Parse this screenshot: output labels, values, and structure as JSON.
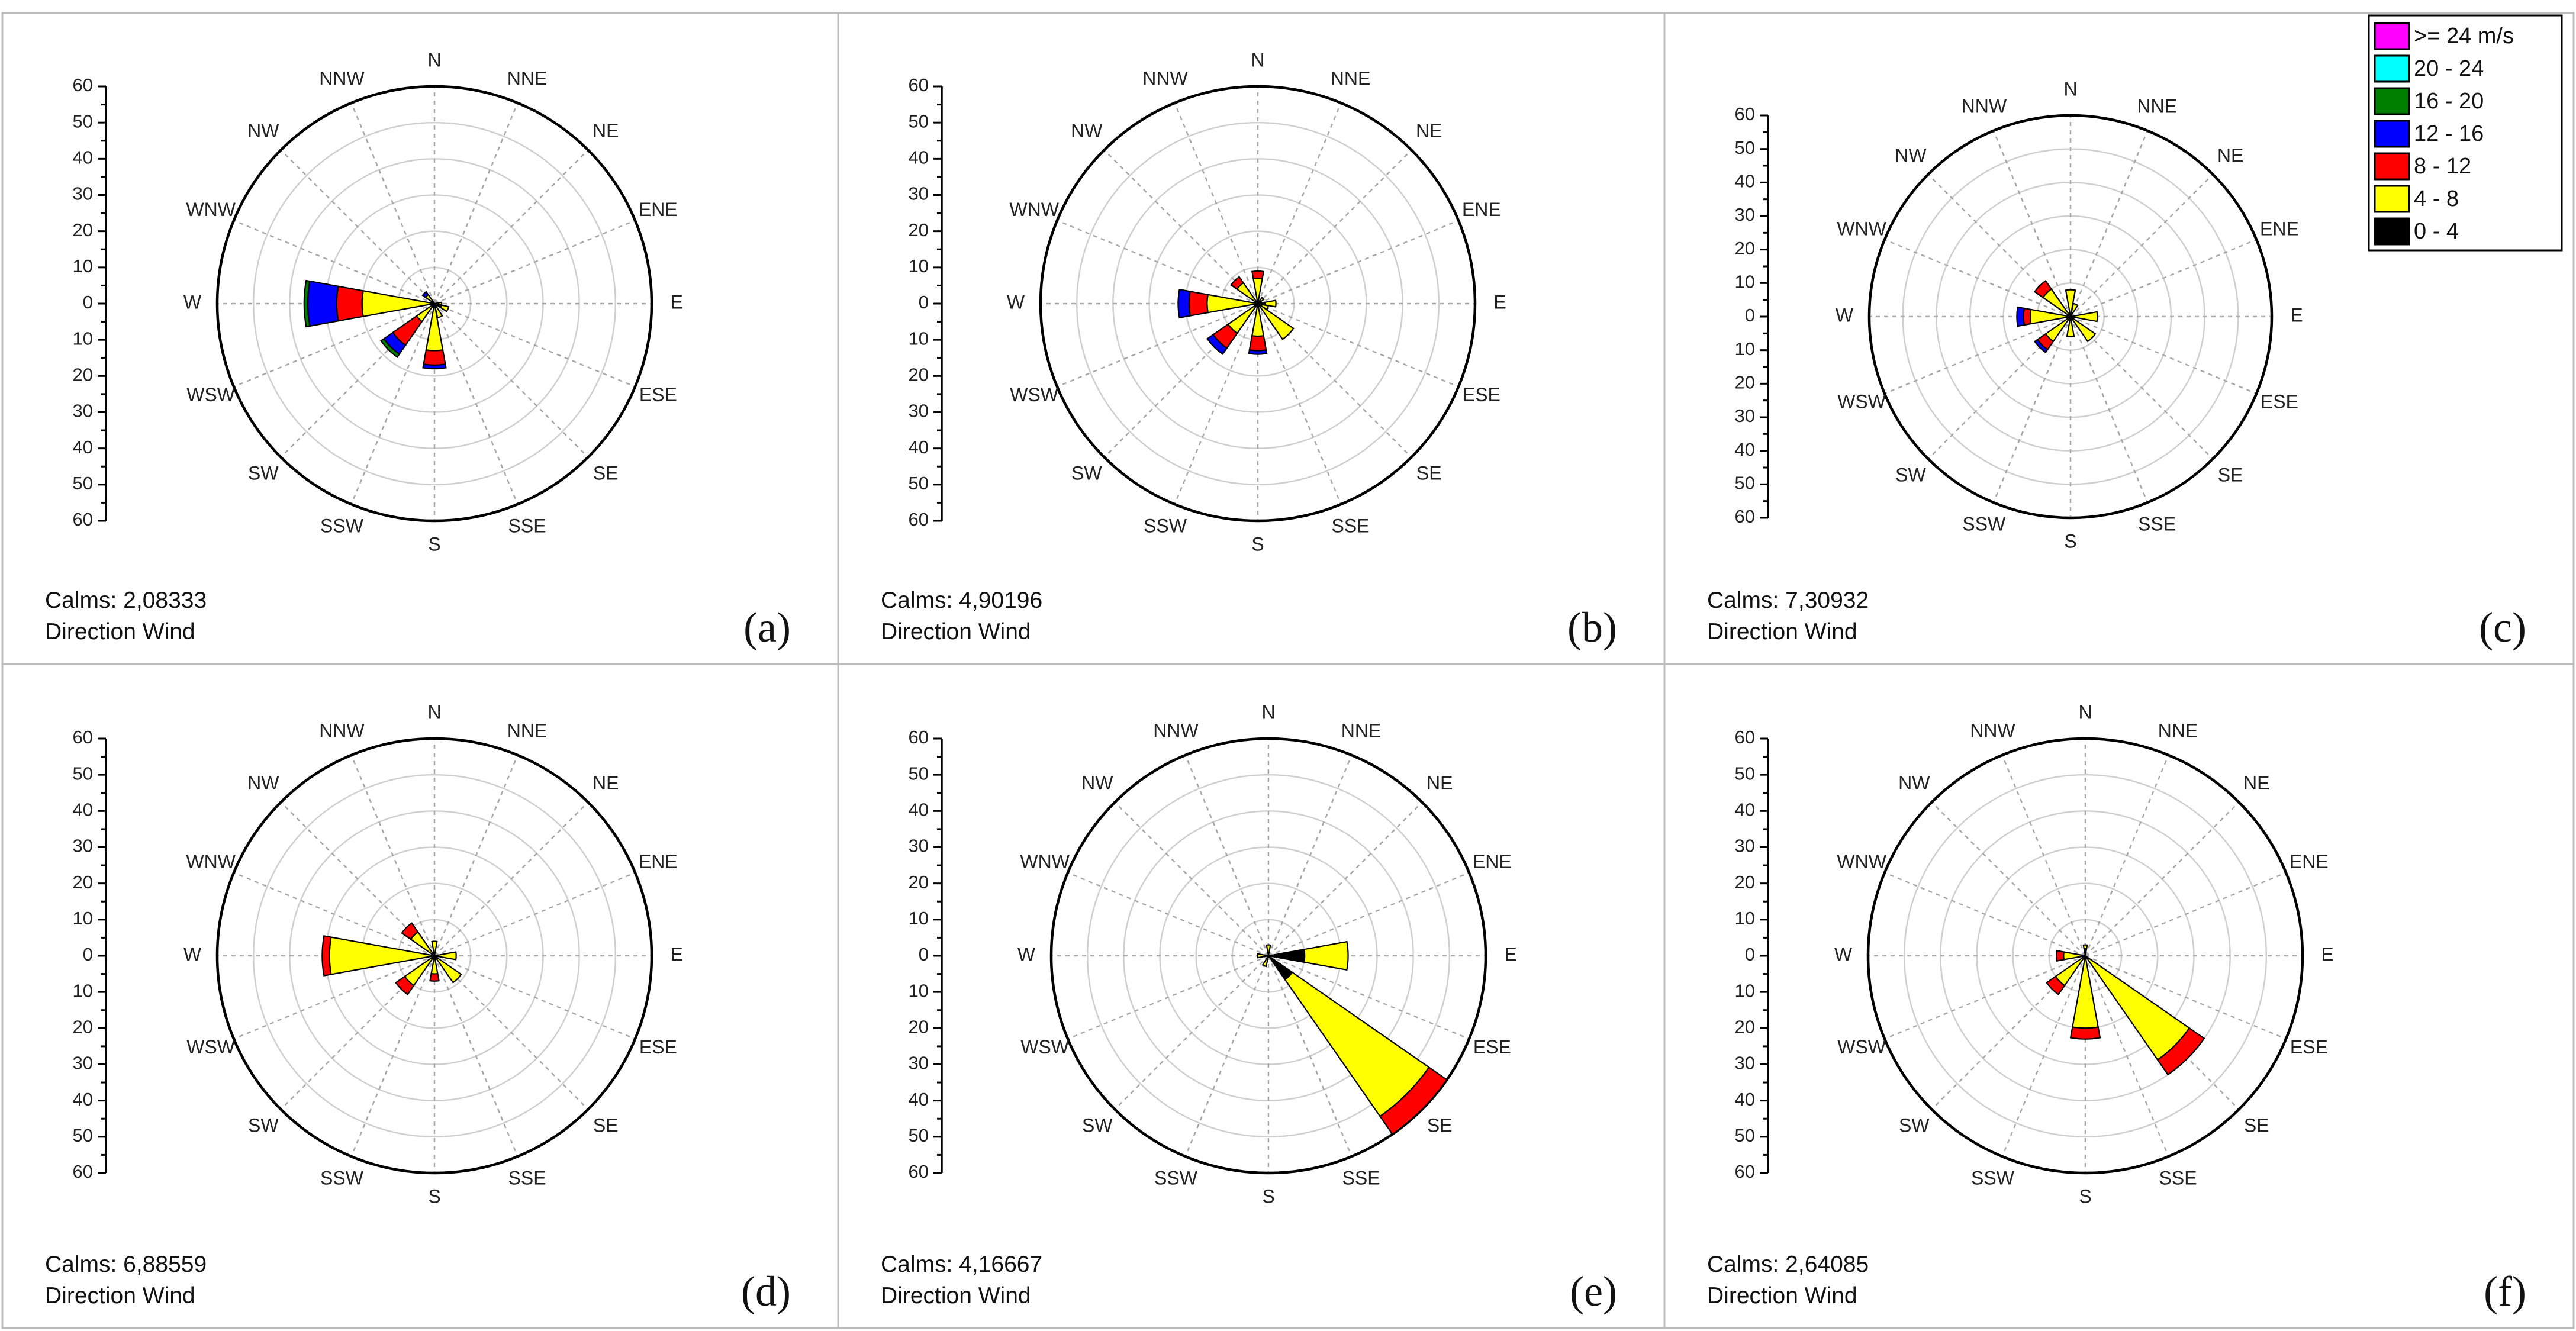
{
  "chart_data": {
    "type": "windrose",
    "directions": [
      "N",
      "NNE",
      "NE",
      "ENE",
      "E",
      "ESE",
      "SE",
      "SSE",
      "S",
      "SSW",
      "SW",
      "WSW",
      "W",
      "WNW",
      "NW",
      "NNW"
    ],
    "radial_ticks": [
      "60",
      "50",
      "40",
      "30",
      "20",
      "10",
      "0",
      "10",
      "20",
      "30",
      "40",
      "50",
      "60"
    ],
    "rmax": 60,
    "bins": [
      {
        "label": "0 - 4",
        "color": "#000000"
      },
      {
        "label": "4 - 8",
        "color": "#ffff00"
      },
      {
        "label": "8 - 12",
        "color": "#ff0000"
      },
      {
        "label": "12 - 16",
        "color": "#0000ff"
      },
      {
        "label": "16 - 20",
        "color": "#008000"
      },
      {
        "label": "20 - 24",
        "color": "#00ffff"
      },
      {
        "label": ">= 24 m/s",
        "color": "#ff00ff"
      }
    ],
    "panels": [
      {
        "tag": "(a)",
        "calms": "Calms: 2,08333",
        "caption": "Direction Wind",
        "petals": [
          {
            "dir": "W",
            "values": [
              0,
              20,
              7,
              8,
              1,
              0,
              0
            ]
          },
          {
            "dir": "SW",
            "values": [
              0,
              6,
              8,
              3,
              1,
              0,
              0
            ]
          },
          {
            "dir": "S",
            "values": [
              0,
              13,
              4,
              1,
              0,
              0,
              0
            ]
          },
          {
            "dir": "NW",
            "values": [
              0,
              3,
              0,
              1,
              0,
              0,
              0
            ]
          },
          {
            "dir": "ESE",
            "values": [
              2,
              2,
              0,
              0,
              0,
              0,
              0
            ]
          },
          {
            "dir": "SSE",
            "values": [
              1,
              3,
              0,
              0,
              0,
              0,
              0
            ]
          },
          {
            "dir": "E",
            "values": [
              1,
              1,
              0,
              0,
              0,
              0,
              0
            ]
          }
        ]
      },
      {
        "tag": "(b)",
        "calms": "Calms: 4,90196",
        "caption": "Direction Wind",
        "petals": [
          {
            "dir": "W",
            "values": [
              0,
              14,
              5,
              3,
              0,
              0,
              0
            ]
          },
          {
            "dir": "SW",
            "values": [
              0,
              10,
              5,
              2,
              0,
              0,
              0
            ]
          },
          {
            "dir": "S",
            "values": [
              1,
              8,
              4,
              1,
              0,
              0,
              0
            ]
          },
          {
            "dir": "SE",
            "values": [
              0,
              12,
              0,
              0,
              0,
              0,
              0
            ]
          },
          {
            "dir": "N",
            "values": [
              1,
              6,
              2,
              0,
              0,
              0,
              0
            ]
          },
          {
            "dir": "NW",
            "values": [
              0,
              7,
              2,
              0,
              0,
              0,
              0
            ]
          },
          {
            "dir": "E",
            "values": [
              2,
              3,
              0,
              0,
              0,
              0,
              0
            ]
          },
          {
            "dir": "ESE",
            "values": [
              1,
              2,
              0,
              0,
              0,
              0,
              0
            ]
          },
          {
            "dir": "NE",
            "values": [
              1,
              1,
              0,
              0,
              0,
              0,
              0
            ]
          }
        ]
      },
      {
        "tag": "(c)",
        "calms": "Calms: 7,30932",
        "caption": "Direction Wind",
        "petals": [
          {
            "dir": "W",
            "values": [
              0,
              12,
              2,
              2,
              0,
              0,
              0
            ]
          },
          {
            "dir": "SW",
            "values": [
              0,
              9,
              3,
              1,
              0,
              0,
              0
            ]
          },
          {
            "dir": "NW",
            "values": [
              0,
              10,
              3,
              0,
              0,
              0,
              0
            ]
          },
          {
            "dir": "E",
            "values": [
              1,
              7,
              0,
              0,
              0,
              0,
              0
            ]
          },
          {
            "dir": "N",
            "values": [
              0,
              8,
              0,
              0,
              0,
              0,
              0
            ]
          },
          {
            "dir": "SE",
            "values": [
              0,
              9,
              0,
              0,
              0,
              0,
              0
            ]
          },
          {
            "dir": "S",
            "values": [
              1,
              5,
              0,
              0,
              0,
              0,
              0
            ]
          },
          {
            "dir": "NNE",
            "values": [
              0,
              4,
              0,
              0,
              0,
              0,
              0
            ]
          }
        ]
      },
      {
        "tag": "(d)",
        "calms": "Calms: 6,88559",
        "caption": "Direction Wind",
        "petals": [
          {
            "dir": "W",
            "values": [
              0,
              29,
              2,
              0,
              0,
              0,
              0
            ]
          },
          {
            "dir": "SW",
            "values": [
              0,
              10,
              3,
              0,
              0,
              0,
              0
            ]
          },
          {
            "dir": "NW",
            "values": [
              0,
              8,
              3,
              0,
              0,
              0,
              0
            ]
          },
          {
            "dir": "SE",
            "values": [
              0,
              9,
              0,
              0,
              0,
              0,
              0
            ]
          },
          {
            "dir": "E",
            "values": [
              1,
              5,
              0,
              0,
              0,
              0,
              0
            ]
          },
          {
            "dir": "S",
            "values": [
              1,
              4,
              2,
              0,
              0,
              0,
              0
            ]
          },
          {
            "dir": "N",
            "values": [
              0,
              4,
              0,
              0,
              0,
              0,
              0
            ]
          }
        ]
      },
      {
        "tag": "(e)",
        "calms": "Calms: 4,16667",
        "caption": "Direction Wind",
        "petals": [
          {
            "dir": "SE",
            "values": [
              8,
              46,
              6,
              0,
              0,
              0,
              0
            ]
          },
          {
            "dir": "E",
            "values": [
              10,
              12,
              0,
              0,
              0,
              0,
              0
            ]
          },
          {
            "dir": "N",
            "values": [
              0,
              3,
              0,
              0,
              0,
              0,
              0
            ]
          },
          {
            "dir": "SSW",
            "values": [
              0,
              3,
              0,
              0,
              0,
              0,
              0
            ]
          },
          {
            "dir": "W",
            "values": [
              1,
              2,
              0,
              0,
              0,
              0,
              0
            ]
          }
        ]
      },
      {
        "tag": "(f)",
        "calms": "Calms: 2,64085",
        "caption": "Direction Wind",
        "petals": [
          {
            "dir": "SE",
            "values": [
              0,
              35,
              5,
              0,
              0,
              0,
              0
            ]
          },
          {
            "dir": "S",
            "values": [
              0,
              20,
              3,
              0,
              0,
              0,
              0
            ]
          },
          {
            "dir": "SW",
            "values": [
              0,
              10,
              3,
              0,
              0,
              0,
              0
            ]
          },
          {
            "dir": "W",
            "values": [
              0,
              6,
              2,
              0,
              0,
              0,
              0
            ]
          },
          {
            "dir": "N",
            "values": [
              2,
              1,
              0,
              0,
              0,
              0,
              0
            ]
          }
        ]
      }
    ]
  }
}
